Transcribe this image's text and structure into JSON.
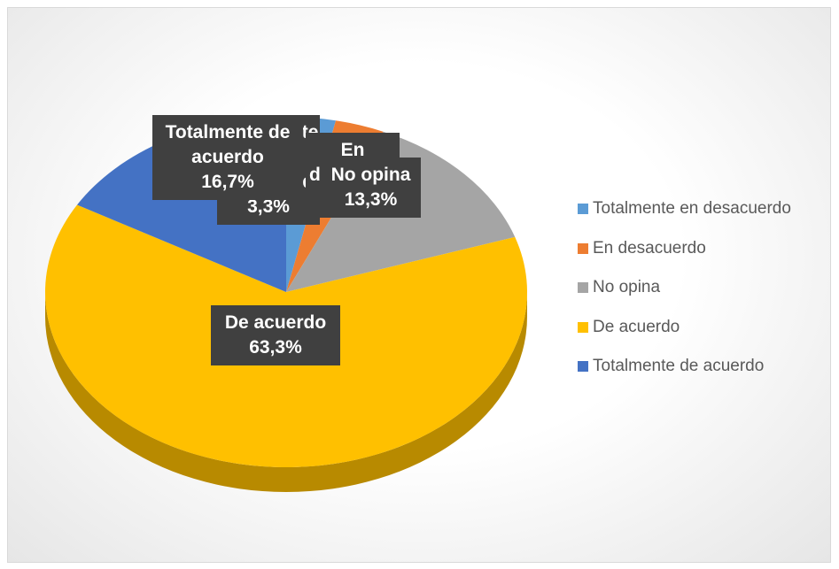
{
  "chart_data": {
    "type": "pie",
    "categories": [
      "Totalmente en desacuerdo",
      "En desacuerdo",
      "No opina",
      "De acuerdo",
      "Totalmente de acuerdo"
    ],
    "values": [
      3.3,
      3.3,
      13.3,
      63.3,
      16.7
    ],
    "value_labels": [
      "3,3%",
      "3,3%",
      "13,3%",
      "63,3%",
      "16,7%"
    ],
    "colors": [
      "#5b9bd5",
      "#ed7d31",
      "#a5a5a5",
      "#ffc000",
      "#4472c4"
    ],
    "legend": "right"
  }
}
